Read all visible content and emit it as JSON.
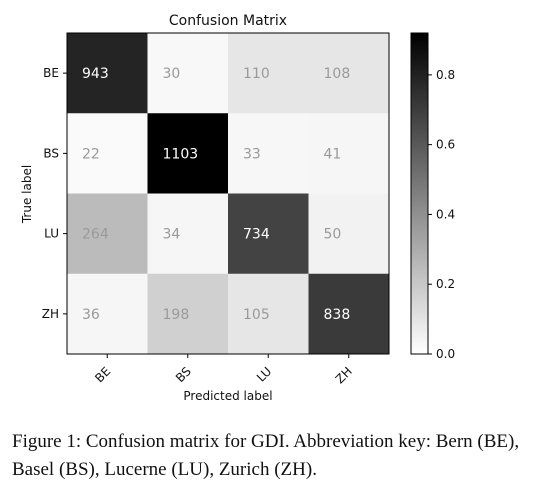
{
  "chart_data": {
    "type": "heatmap",
    "title": "Confusion Matrix",
    "xlabel": "Predicted label",
    "ylabel": "True label",
    "x_categories": [
      "BE",
      "BS",
      "LU",
      "ZH"
    ],
    "y_categories": [
      "BE",
      "BS",
      "LU",
      "ZH"
    ],
    "cell_labels": [
      [
        "943",
        "30",
        "110",
        "108"
      ],
      [
        "22",
        "1103",
        "33",
        "41"
      ],
      [
        "264",
        "34",
        "734",
        "50"
      ],
      [
        "36",
        "198",
        "105",
        "838"
      ]
    ],
    "values": [
      [
        0.79,
        0.025,
        0.092,
        0.09
      ],
      [
        0.018,
        0.92,
        0.028,
        0.034
      ],
      [
        0.244,
        0.031,
        0.678,
        0.046
      ],
      [
        0.031,
        0.168,
        0.089,
        0.712
      ]
    ],
    "colorbar": {
      "range": [
        0.0,
        0.92
      ],
      "ticks": [
        0.0,
        0.2,
        0.4,
        0.6,
        0.8
      ],
      "tick_labels": [
        "0.0",
        "0.2",
        "0.4",
        "0.6",
        "0.8"
      ],
      "colormap": "greys"
    }
  },
  "caption": "Figure 1: Confusion matrix for GDI. Abbreviation key: Bern (BE), Basel (BS), Lucerne (LU), Zurich (ZH)."
}
